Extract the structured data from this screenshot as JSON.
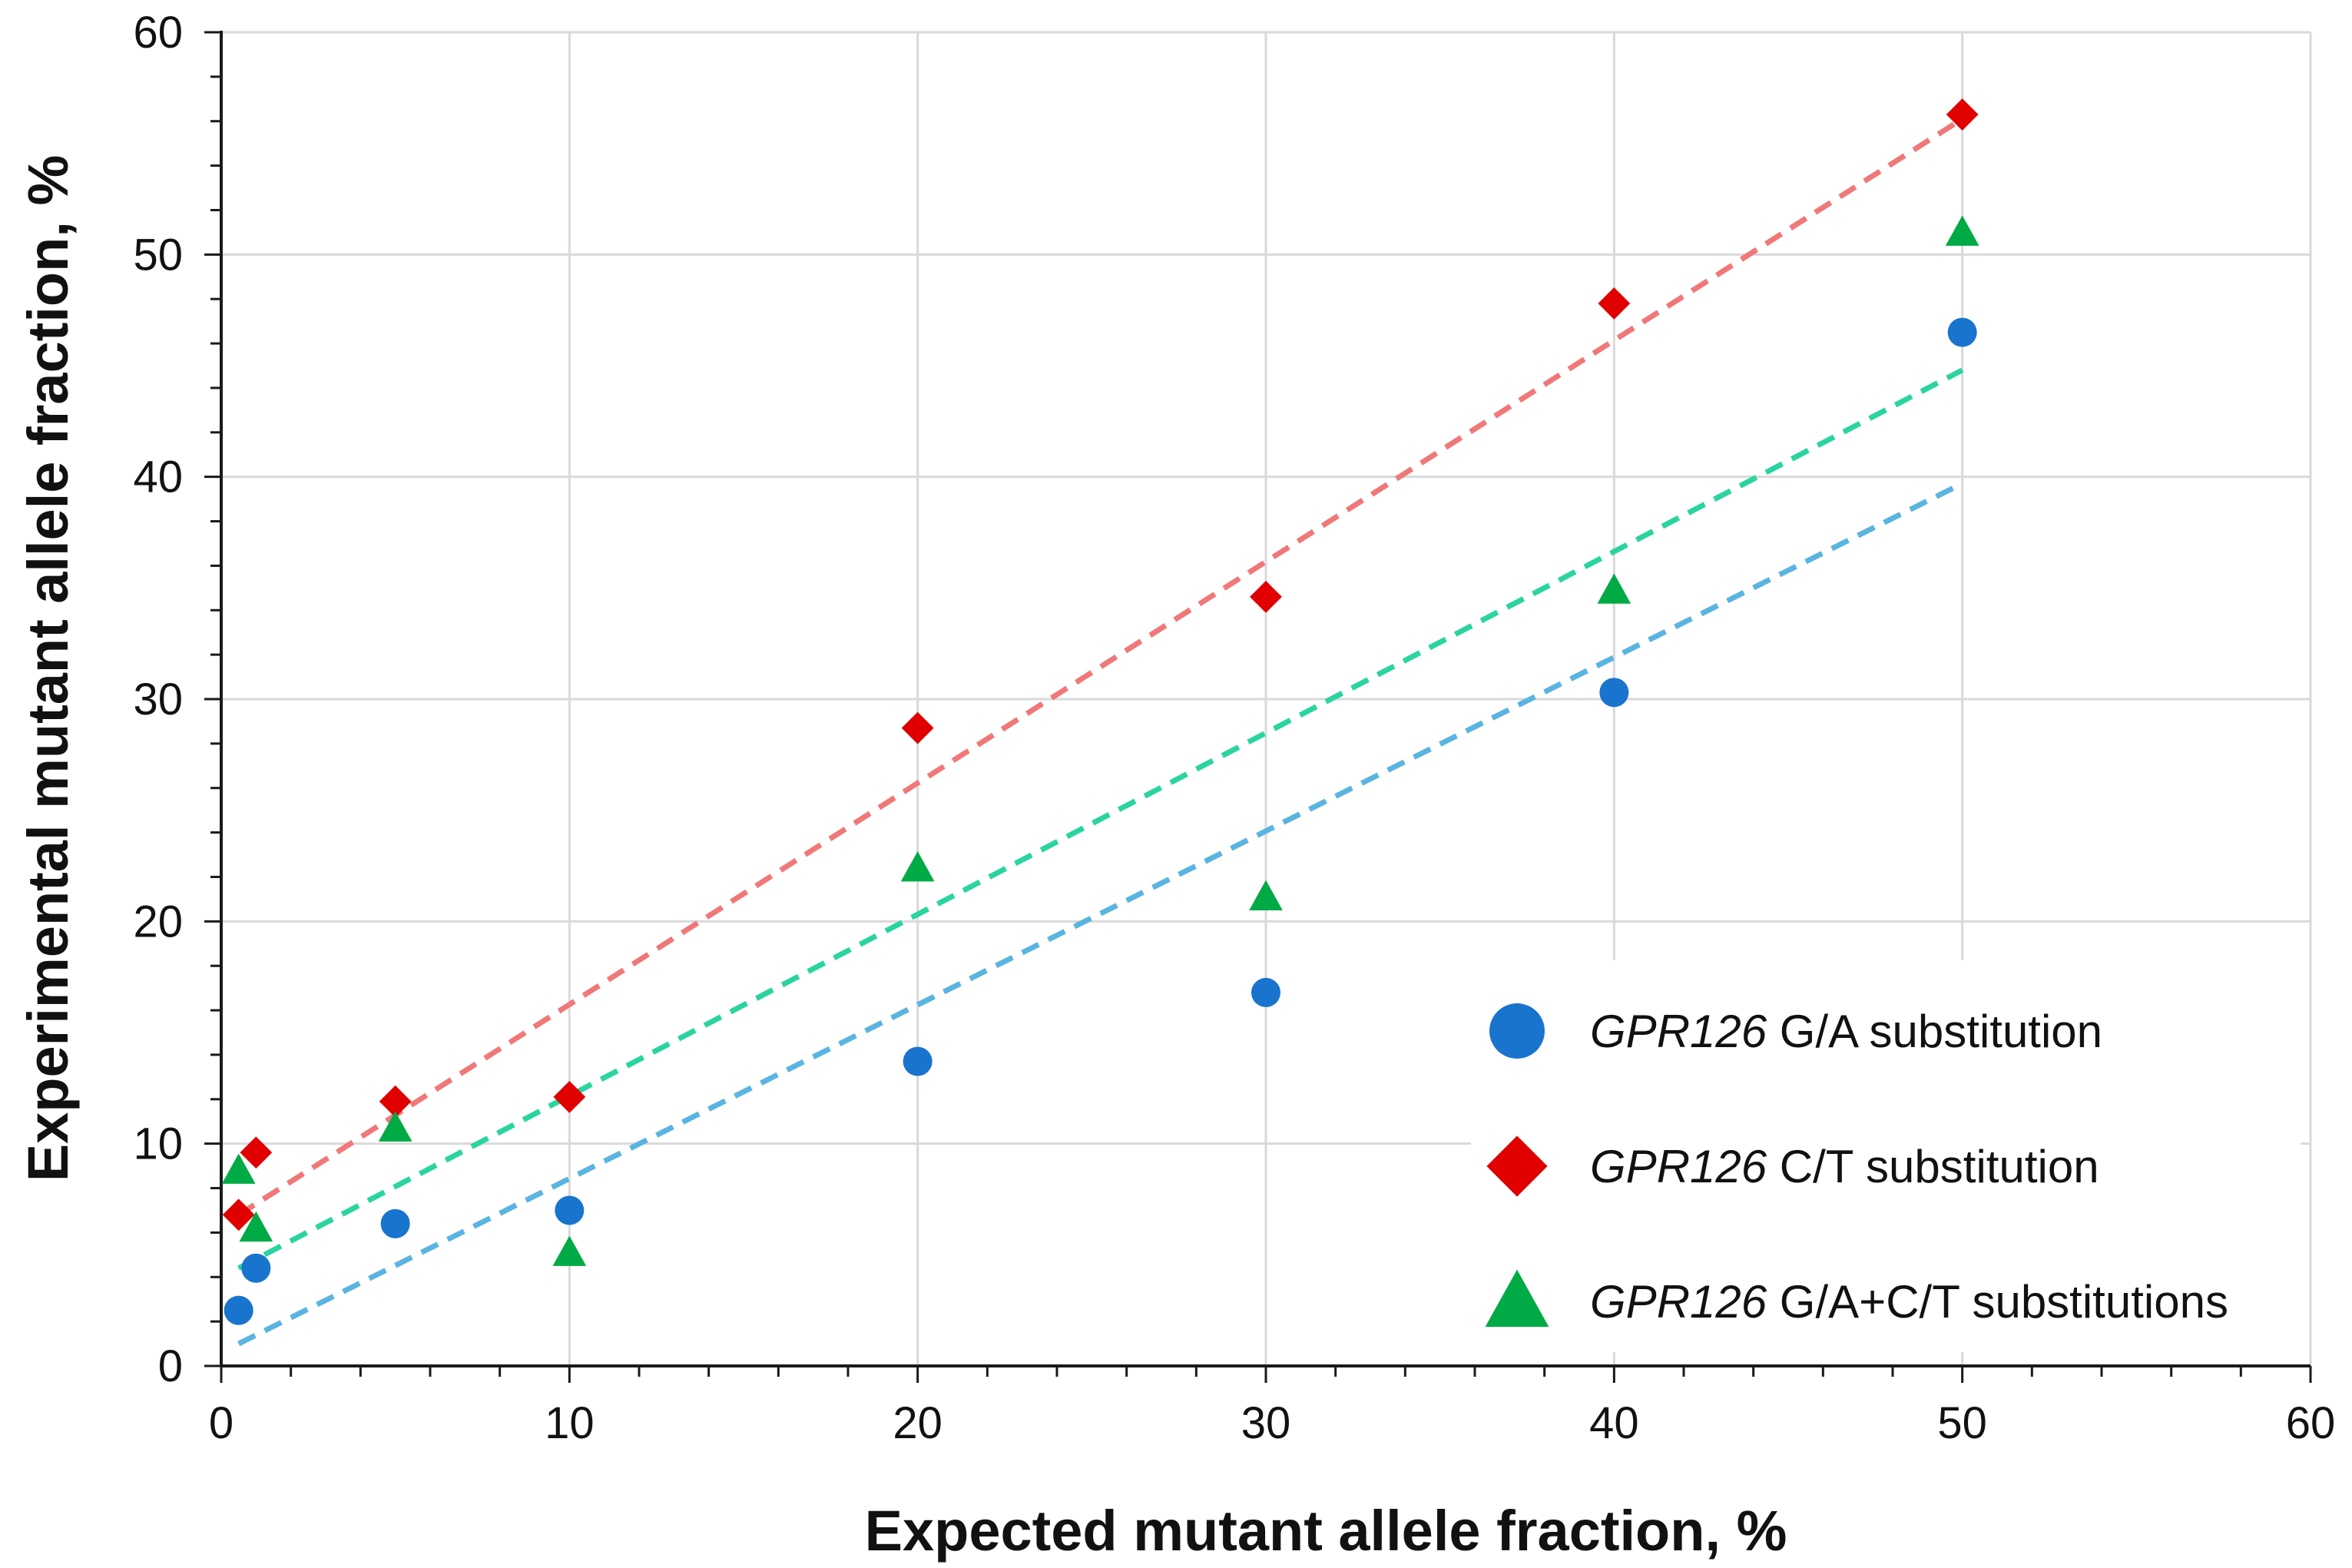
{
  "chart_data": {
    "type": "scatter",
    "title": "",
    "xlabel": "Expected mutant allele fraction, %",
    "ylabel": "Experimental mutant allele fraction, %",
    "xlim": [
      0,
      60
    ],
    "ylim": [
      0,
      60
    ],
    "xticks": [
      0,
      10,
      20,
      30,
      40,
      50,
      60
    ],
    "yticks": [
      0,
      10,
      20,
      30,
      40,
      50,
      60
    ],
    "xtick_labels": [
      "0",
      "10",
      "20",
      "30",
      "40",
      "50",
      "60"
    ],
    "ytick_labels": [
      "0",
      "10",
      "20",
      "30",
      "40",
      "50",
      "60"
    ],
    "grid": true,
    "legend_position": "bottom-right",
    "series": [
      {
        "name": "GPR126 G/A substitution",
        "gene": "GPR126",
        "label_rest": " G/A substitution",
        "marker": "circle",
        "color": "#1874cd",
        "trend_color": "#5ab4e0",
        "x": [
          0.5,
          1,
          5,
          10,
          20,
          30,
          40,
          50
        ],
        "y": [
          2.5,
          4.4,
          6.4,
          7.0,
          13.7,
          16.8,
          30.3,
          46.5
        ],
        "trend": [
          [
            0.5,
            1.0
          ],
          [
            50,
            39.7
          ]
        ]
      },
      {
        "name": "GPR126 C/T substitution",
        "gene": "GPR126",
        "label_rest": " C/T substitution",
        "marker": "diamond",
        "color": "#e00000",
        "trend_color": "#f07878",
        "x": [
          0.5,
          1,
          5,
          10,
          20,
          30,
          40,
          50
        ],
        "y": [
          6.8,
          9.6,
          11.9,
          12.1,
          28.7,
          34.6,
          47.8,
          56.3
        ],
        "trend": [
          [
            0.5,
            6.8
          ],
          [
            50,
            56.1
          ]
        ]
      },
      {
        "name": "GPR126 G/A+C/T substitutions",
        "gene": "GPR126",
        "label_rest": " G/A+C/T substitutions",
        "marker": "triangle",
        "color": "#00aa44",
        "trend_color": "#2ad4a0",
        "x": [
          0.5,
          1,
          5,
          10,
          20,
          30,
          40,
          50
        ],
        "y": [
          8.8,
          6.2,
          10.7,
          5.1,
          22.4,
          21.1,
          34.9,
          51.0
        ],
        "trend": [
          [
            0.5,
            4.4
          ],
          [
            50,
            44.8
          ]
        ]
      }
    ]
  }
}
